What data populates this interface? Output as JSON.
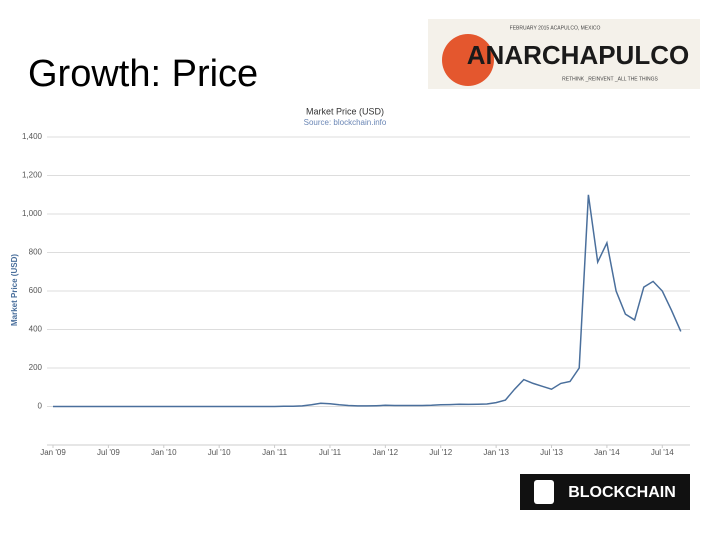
{
  "slide_title": "Growth: Price",
  "logo_top": {
    "name": "ANARCHAPULCO",
    "line1": "FEBRUARY 2015   ACAPULCO, MEXICO",
    "line2": "RETHINK _REINVENT _ALL THE THINGS"
  },
  "logo_bottom": {
    "name": "BLOCKCHAIN"
  },
  "chart_data": {
    "type": "line",
    "title": "Market Price (USD)",
    "subtitle": "Source: blockchain.info",
    "y_label": "Market Price (USD)",
    "x": [
      "2009-01",
      "2009-07",
      "2010-01",
      "2010-07",
      "2011-01",
      "2011-02",
      "2011-03",
      "2011-04",
      "2011-05",
      "2011-06",
      "2011-07",
      "2011-08",
      "2011-09",
      "2011-10",
      "2011-11",
      "2011-12",
      "2012-01",
      "2012-02",
      "2012-03",
      "2012-04",
      "2012-05",
      "2012-06",
      "2012-07",
      "2012-08",
      "2012-09",
      "2012-10",
      "2012-11",
      "2012-12",
      "2013-01",
      "2013-02",
      "2013-03",
      "2013-04",
      "2013-05",
      "2013-06",
      "2013-07",
      "2013-08",
      "2013-09",
      "2013-10",
      "2013-11",
      "2013-12",
      "2014-01",
      "2014-02",
      "2014-03",
      "2014-04",
      "2014-05",
      "2014-06",
      "2014-07",
      "2014-08",
      "2014-09"
    ],
    "series": [
      {
        "name": "Market Price (USD)",
        "color": "#4a6f9c",
        "values": [
          0,
          0,
          0,
          0,
          0,
          1,
          1,
          3,
          9,
          17,
          14,
          9,
          5,
          3,
          3,
          4,
          6,
          5,
          5,
          5,
          5,
          6,
          9,
          10,
          12,
          11,
          12,
          13,
          20,
          33,
          90,
          140,
          120,
          105,
          90,
          120,
          130,
          200,
          1100,
          750,
          850,
          600,
          480,
          450,
          620,
          650,
          600,
          500,
          390
        ]
      }
    ],
    "xlim": [
      "2009-01",
      "2014-10"
    ],
    "xticks": [
      {
        "value": "2009-01",
        "label": "Jan '09"
      },
      {
        "value": "2009-07",
        "label": "Jul '09"
      },
      {
        "value": "2010-01",
        "label": "Jan '10"
      },
      {
        "value": "2010-07",
        "label": "Jul '10"
      },
      {
        "value": "2011-01",
        "label": "Jan '11"
      },
      {
        "value": "2011-07",
        "label": "Jul '11"
      },
      {
        "value": "2012-01",
        "label": "Jan '12"
      },
      {
        "value": "2012-07",
        "label": "Jul '12"
      },
      {
        "value": "2013-01",
        "label": "Jan '13"
      },
      {
        "value": "2013-07",
        "label": "Jul '13"
      },
      {
        "value": "2014-01",
        "label": "Jan '14"
      },
      {
        "value": "2014-07",
        "label": "Jul '14"
      }
    ],
    "ylim": [
      -200,
      1400
    ],
    "yticks": [
      0,
      200,
      400,
      600,
      800,
      {
        "value": 1000,
        "label": "1,000"
      },
      {
        "value": 1200,
        "label": "1,200"
      },
      {
        "value": 1400,
        "label": "1,400"
      }
    ],
    "grid": true
  }
}
